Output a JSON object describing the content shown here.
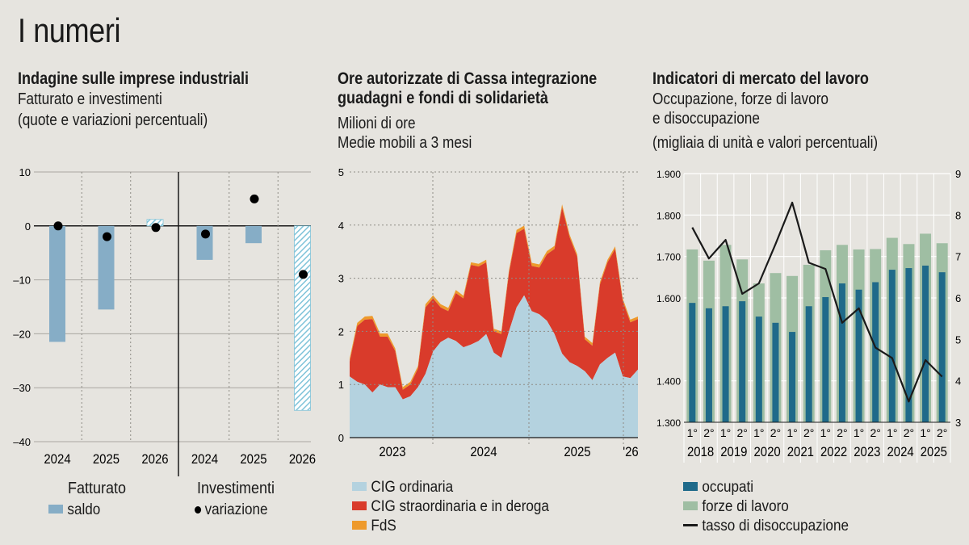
{
  "page_title": "I numeri",
  "panels": {
    "p1": {
      "title": "Indagine sulle imprese industriali",
      "subtitle1": "Fatturato e investimenti",
      "subtitle2": "(quote e variazioni percentuali)",
      "group1_label": "Fatturato",
      "group2_label": "Investimenti",
      "legend_bar": "saldo",
      "legend_dot": "variazione"
    },
    "p2": {
      "title1": "Ore autorizzate di Cassa integrazione",
      "title2": "guadagni e fondi di solidarietà",
      "subtitle1": "Milioni di ore",
      "subtitle2": "Medie mobili a 3 mesi",
      "legend": [
        "CIG ordinaria",
        "CIG straordinaria e in deroga",
        "FdS"
      ]
    },
    "p3": {
      "title": "Indicatori di mercato del lavoro",
      "subtitle1": "Occupazione, forze di lavoro",
      "subtitle2": "e disoccupazione",
      "subtitle3": "(migliaia di unità e valori percentuali)",
      "legend": [
        "occupati",
        "forze di lavoro",
        "tasso di disoccupazione"
      ]
    }
  },
  "colors": {
    "bar_blue": "#86adc6",
    "hatch": "#7fc3d9",
    "cig_ord": "#b4d2df",
    "cig_str": "#d93b2b",
    "fds": "#ee9a2c",
    "occupati": "#1f6a8a",
    "forze": "#9fbea3",
    "line": "#1a1a1a"
  },
  "chart_data": [
    {
      "type": "bar",
      "categories": [
        "2024",
        "2025",
        "2026",
        "2024",
        "2025",
        "2026"
      ],
      "groups": [
        "Fatturato",
        "Investimenti"
      ],
      "series": [
        {
          "name": "saldo",
          "values": [
            -21.5,
            -15.5,
            1.2,
            -6.3,
            -3.2,
            -34.2
          ],
          "hatched": [
            false,
            false,
            true,
            false,
            false,
            true
          ]
        },
        {
          "name": "variazione",
          "values": [
            0,
            -2,
            -0.3,
            -1.5,
            5,
            -9
          ]
        }
      ],
      "yticks": [
        10,
        0,
        -10,
        -20,
        -30,
        -40
      ],
      "ylim": [
        -40,
        10
      ]
    },
    {
      "type": "area",
      "x_ticks": [
        "2023",
        "2024",
        "2025",
        "'26"
      ],
      "yticks": [
        0,
        1,
        2,
        3,
        4,
        5
      ],
      "ylim": [
        0,
        5
      ],
      "series": [
        {
          "name": "CIG ordinaria",
          "values": [
            1.15,
            1.05,
            1.0,
            0.85,
            1.0,
            0.95,
            0.95,
            0.72,
            0.78,
            0.95,
            1.2,
            1.62,
            1.8,
            1.88,
            1.82,
            1.7,
            1.75,
            1.82,
            1.95,
            1.6,
            1.5,
            2.0,
            2.45,
            2.68,
            2.38,
            2.32,
            2.2,
            1.95,
            1.58,
            1.42,
            1.35,
            1.25,
            1.08,
            1.38,
            1.5,
            1.6,
            1.15,
            1.12,
            1.28
          ]
        },
        {
          "name": "CIG straordinaria e in deroga",
          "values": [
            0.28,
            1.05,
            1.22,
            1.38,
            0.9,
            0.95,
            0.68,
            0.18,
            0.22,
            0.35,
            1.25,
            1.0,
            0.65,
            0.5,
            0.9,
            0.92,
            1.5,
            1.4,
            1.35,
            0.4,
            0.45,
            1.1,
            1.4,
            1.25,
            0.85,
            0.88,
            1.25,
            1.6,
            2.75,
            2.35,
            2.05,
            0.6,
            0.65,
            1.5,
            1.8,
            1.95,
            1.42,
            1.05,
            0.95
          ]
        },
        {
          "name": "FdS",
          "values": [
            0.06,
            0.06,
            0.06,
            0.06,
            0.06,
            0.06,
            0.05,
            0.05,
            0.05,
            0.05,
            0.06,
            0.06,
            0.06,
            0.06,
            0.06,
            0.05,
            0.05,
            0.05,
            0.05,
            0.05,
            0.05,
            0.05,
            0.06,
            0.06,
            0.06,
            0.06,
            0.06,
            0.06,
            0.06,
            0.05,
            0.05,
            0.05,
            0.05,
            0.05,
            0.05,
            0.05,
            0.05,
            0.05,
            0.05
          ]
        }
      ]
    },
    {
      "type": "bar",
      "categories": [
        "1° 2018",
        "2° 2018",
        "1° 2019",
        "2° 2019",
        "1° 2020",
        "2° 2020",
        "1° 2021",
        "2° 2021",
        "1° 2022",
        "2° 2022",
        "1° 2023",
        "2° 2023",
        "1° 2024",
        "2° 2024",
        "1° 2025",
        "2° 2025"
      ],
      "half_labels": [
        "1°",
        "2°"
      ],
      "years": [
        "2018",
        "2019",
        "2020",
        "2021",
        "2022",
        "2023",
        "2024",
        "2025"
      ],
      "series": [
        {
          "name": "occupati",
          "values": [
            1588,
            1575,
            1580,
            1592,
            1555,
            1540,
            1518,
            1580,
            1602,
            1635,
            1620,
            1638,
            1668,
            1672,
            1678,
            1662
          ]
        },
        {
          "name": "forze di lavoro",
          "values": [
            1717,
            1690,
            1728,
            1693,
            1635,
            1660,
            1653,
            1680,
            1715,
            1728,
            1717,
            1718,
            1745,
            1730,
            1755,
            1732
          ]
        },
        {
          "name": "tasso di disoccupazione",
          "axis": "right",
          "values": [
            7.7,
            6.95,
            7.4,
            6.1,
            6.35,
            7.3,
            8.3,
            6.85,
            6.7,
            5.4,
            5.75,
            4.8,
            4.55,
            3.5,
            4.5,
            4.1
          ]
        }
      ],
      "yticks_left": [
        "1.900",
        "1.800",
        "1.700",
        "1.600",
        "1.400",
        "1.300"
      ],
      "yticks_left_values": [
        1900,
        1800,
        1700,
        1600,
        1400,
        1300
      ],
      "yticks_right": [
        9,
        8,
        7,
        6,
        5,
        4,
        3
      ],
      "ylim_left": [
        1300,
        1900
      ],
      "ylim_right": [
        3,
        9
      ]
    }
  ]
}
